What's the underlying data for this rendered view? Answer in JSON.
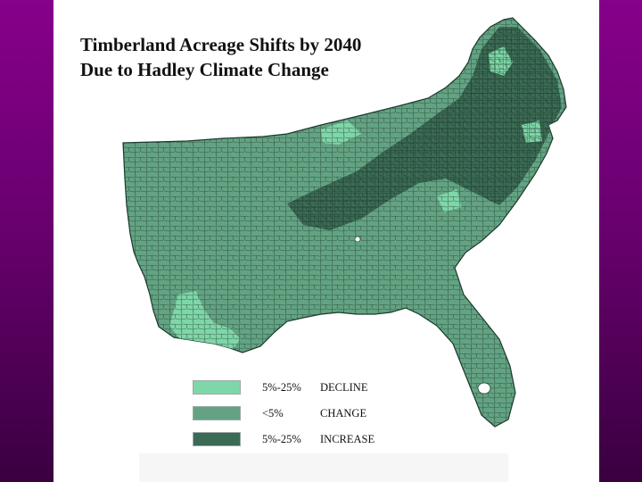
{
  "title": {
    "line1": "Timberland Acreage Shifts by 2040",
    "line2": "Due to Hadley Climate Change"
  },
  "legend": [
    {
      "range": "5%-25%",
      "effect": "DECLINE",
      "color": "#7fd6a8"
    },
    {
      "range": "<5%",
      "effect": "CHANGE",
      "color": "#63a383"
    },
    {
      "range": "5%-25%",
      "effect": "INCREASE",
      "color": "#3b6b55"
    }
  ],
  "colors": {
    "background_purple": "#7a0080",
    "panel": "#ffffff",
    "county_lines": "#1d3a2c"
  }
}
